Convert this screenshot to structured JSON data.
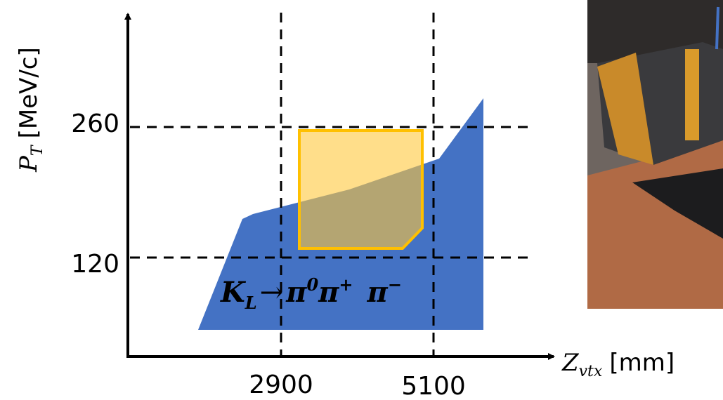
{
  "y_axis_label": {
    "symbol": "P",
    "subscript": "T",
    "unit": "[MeV/c]"
  },
  "x_axis_label": {
    "symbol": "Z",
    "subscript": "vtx",
    "unit": "[mm]"
  },
  "y_ticks": [
    "260",
    "120"
  ],
  "x_ticks": [
    "2900",
    "5100"
  ],
  "decay_label": {
    "kaon": "K",
    "kaon_sub": "L",
    "arrow": "→",
    "pi0": "π",
    "pi0_sup": "0",
    "pip": "π",
    "pip_sup": "+",
    "pim": "π",
    "pim_sup": "−"
  }
}
